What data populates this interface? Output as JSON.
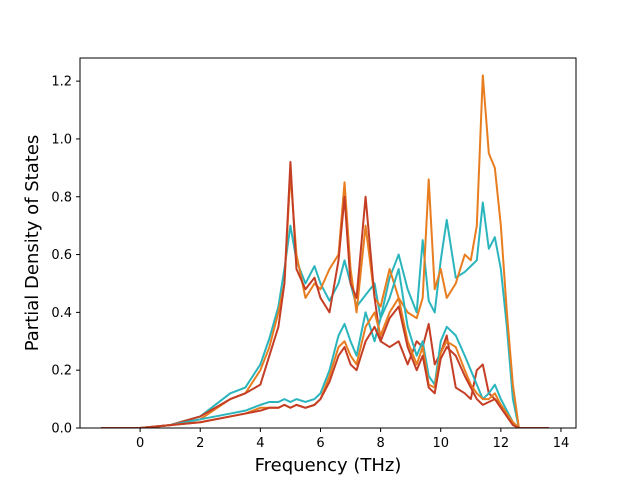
{
  "chart_data": {
    "type": "line",
    "title": "",
    "xlabel": "Frequency (THz)",
    "ylabel": "Partial Density of States",
    "xlim": [
      -2.0,
      14.5
    ],
    "ylim": [
      0.0,
      1.28
    ],
    "x_ticks": [
      0,
      2,
      4,
      6,
      8,
      10,
      12,
      14
    ],
    "x_tick_labels": [
      "0",
      "2",
      "4",
      "6",
      "8",
      "10",
      "12",
      "14"
    ],
    "y_ticks": [
      0.0,
      0.2,
      0.4,
      0.6,
      0.8,
      1.0,
      1.2
    ],
    "y_tick_labels": [
      "0.0",
      "0.2",
      "0.4",
      "0.6",
      "0.8",
      "1.0",
      "1.2"
    ],
    "grid": false,
    "legend": "none",
    "series": [
      {
        "color": "#2ab5bd",
        "x": [
          -1.3,
          0.0,
          1.0,
          2.0,
          3.0,
          3.5,
          4.0,
          4.3,
          4.6,
          4.8,
          5.0,
          5.2,
          5.5,
          5.8,
          6.0,
          6.3,
          6.6,
          6.8,
          7.0,
          7.2,
          7.5,
          7.8,
          8.0,
          8.3,
          8.6,
          8.9,
          9.2,
          9.4,
          9.6,
          9.8,
          10.0,
          10.2,
          10.5,
          10.8,
          11.0,
          11.2,
          11.4,
          11.6,
          11.8,
          12.0,
          12.2,
          12.4,
          12.6,
          13.6
        ],
        "y": [
          0.0,
          0.0,
          0.01,
          0.04,
          0.12,
          0.14,
          0.22,
          0.31,
          0.42,
          0.55,
          0.7,
          0.58,
          0.5,
          0.56,
          0.5,
          0.44,
          0.5,
          0.58,
          0.5,
          0.42,
          0.46,
          0.5,
          0.38,
          0.52,
          0.6,
          0.48,
          0.4,
          0.65,
          0.44,
          0.4,
          0.58,
          0.72,
          0.52,
          0.54,
          0.56,
          0.58,
          0.78,
          0.62,
          0.66,
          0.55,
          0.35,
          0.1,
          0.0,
          0.0
        ]
      },
      {
        "color": "#e87d20",
        "x": [
          -1.3,
          0.0,
          1.0,
          2.0,
          3.0,
          3.5,
          4.0,
          4.3,
          4.6,
          4.8,
          5.0,
          5.2,
          5.5,
          5.8,
          6.0,
          6.3,
          6.6,
          6.8,
          7.0,
          7.2,
          7.5,
          7.8,
          8.0,
          8.3,
          8.6,
          8.9,
          9.2,
          9.4,
          9.6,
          9.8,
          10.0,
          10.2,
          10.5,
          10.8,
          11.0,
          11.2,
          11.4,
          11.6,
          11.8,
          12.0,
          12.2,
          12.4,
          12.6,
          13.6
        ],
        "y": [
          0.0,
          0.0,
          0.01,
          0.03,
          0.1,
          0.12,
          0.2,
          0.28,
          0.4,
          0.5,
          0.88,
          0.6,
          0.45,
          0.5,
          0.48,
          0.55,
          0.6,
          0.85,
          0.55,
          0.4,
          0.7,
          0.45,
          0.42,
          0.55,
          0.45,
          0.4,
          0.38,
          0.45,
          0.86,
          0.48,
          0.55,
          0.45,
          0.5,
          0.6,
          0.58,
          0.7,
          1.22,
          0.95,
          0.9,
          0.7,
          0.4,
          0.15,
          0.0,
          0.0
        ]
      },
      {
        "color": "#c43e25",
        "x": [
          -1.3,
          0.0,
          1.0,
          2.0,
          3.0,
          3.5,
          4.0,
          4.3,
          4.6,
          4.8,
          5.0,
          5.2,
          5.5,
          5.8,
          6.0,
          6.3,
          6.6,
          6.8,
          7.0,
          7.2,
          7.5,
          7.8,
          8.0,
          8.3,
          8.6,
          8.9,
          9.2,
          9.4,
          9.6,
          9.8,
          10.0,
          10.2,
          10.5,
          10.8,
          11.0,
          11.2,
          11.4,
          11.6,
          11.8,
          12.0,
          12.2,
          12.4,
          12.6,
          13.6
        ],
        "y": [
          0.0,
          0.0,
          0.01,
          0.04,
          0.1,
          0.12,
          0.15,
          0.25,
          0.35,
          0.5,
          0.92,
          0.55,
          0.48,
          0.52,
          0.45,
          0.4,
          0.58,
          0.8,
          0.5,
          0.45,
          0.8,
          0.45,
          0.3,
          0.28,
          0.3,
          0.22,
          0.3,
          0.28,
          0.36,
          0.22,
          0.26,
          0.32,
          0.14,
          0.12,
          0.1,
          0.2,
          0.22,
          0.12,
          0.1,
          0.08,
          0.05,
          0.02,
          0.0,
          0.0
        ]
      },
      {
        "color": "#2ab5bd",
        "x": [
          -1.3,
          0.0,
          1.0,
          2.0,
          3.0,
          3.5,
          4.0,
          4.3,
          4.6,
          4.8,
          5.0,
          5.2,
          5.5,
          5.8,
          6.0,
          6.3,
          6.6,
          6.8,
          7.0,
          7.2,
          7.5,
          7.8,
          8.0,
          8.3,
          8.6,
          8.9,
          9.2,
          9.4,
          9.6,
          9.8,
          10.0,
          10.2,
          10.5,
          10.8,
          11.0,
          11.2,
          11.4,
          11.6,
          11.8,
          12.0,
          12.2,
          12.4,
          12.6,
          13.6
        ],
        "y": [
          0.0,
          0.0,
          0.01,
          0.03,
          0.05,
          0.06,
          0.08,
          0.09,
          0.09,
          0.1,
          0.09,
          0.1,
          0.09,
          0.1,
          0.12,
          0.2,
          0.32,
          0.36,
          0.3,
          0.25,
          0.4,
          0.3,
          0.38,
          0.45,
          0.55,
          0.35,
          0.25,
          0.3,
          0.18,
          0.15,
          0.3,
          0.35,
          0.32,
          0.25,
          0.2,
          0.15,
          0.1,
          0.12,
          0.15,
          0.1,
          0.06,
          0.02,
          0.0,
          0.0
        ]
      },
      {
        "color": "#e87d20",
        "x": [
          -1.3,
          0.0,
          1.0,
          2.0,
          3.0,
          3.5,
          4.0,
          4.3,
          4.6,
          4.8,
          5.0,
          5.2,
          5.5,
          5.8,
          6.0,
          6.3,
          6.6,
          6.8,
          7.0,
          7.2,
          7.5,
          7.8,
          8.0,
          8.3,
          8.6,
          8.9,
          9.2,
          9.4,
          9.6,
          9.8,
          10.0,
          10.2,
          10.5,
          10.8,
          11.0,
          11.2,
          11.4,
          11.6,
          11.8,
          12.0,
          12.2,
          12.4,
          12.6,
          13.6
        ],
        "y": [
          0.0,
          0.0,
          0.01,
          0.02,
          0.04,
          0.05,
          0.07,
          0.07,
          0.07,
          0.08,
          0.07,
          0.08,
          0.07,
          0.08,
          0.1,
          0.18,
          0.28,
          0.3,
          0.25,
          0.22,
          0.35,
          0.4,
          0.32,
          0.4,
          0.45,
          0.3,
          0.22,
          0.28,
          0.15,
          0.14,
          0.26,
          0.3,
          0.28,
          0.2,
          0.15,
          0.12,
          0.1,
          0.1,
          0.12,
          0.08,
          0.05,
          0.02,
          0.0,
          0.0
        ]
      },
      {
        "color": "#c43e25",
        "x": [
          -1.3,
          0.0,
          1.0,
          2.0,
          3.0,
          3.5,
          4.0,
          4.3,
          4.6,
          4.8,
          5.0,
          5.2,
          5.5,
          5.8,
          6.0,
          6.3,
          6.6,
          6.8,
          7.0,
          7.2,
          7.5,
          7.8,
          8.0,
          8.3,
          8.6,
          8.9,
          9.2,
          9.4,
          9.6,
          9.8,
          10.0,
          10.2,
          10.5,
          10.8,
          11.0,
          11.2,
          11.4,
          11.6,
          11.8,
          12.0,
          12.2,
          12.4,
          12.6,
          13.6
        ],
        "y": [
          0.0,
          0.0,
          0.01,
          0.02,
          0.04,
          0.05,
          0.06,
          0.07,
          0.07,
          0.08,
          0.07,
          0.08,
          0.07,
          0.08,
          0.1,
          0.16,
          0.25,
          0.28,
          0.22,
          0.2,
          0.3,
          0.35,
          0.3,
          0.38,
          0.42,
          0.28,
          0.2,
          0.25,
          0.14,
          0.12,
          0.24,
          0.28,
          0.25,
          0.18,
          0.14,
          0.1,
          0.08,
          0.09,
          0.1,
          0.07,
          0.04,
          0.01,
          0.0,
          0.0
        ]
      }
    ]
  }
}
